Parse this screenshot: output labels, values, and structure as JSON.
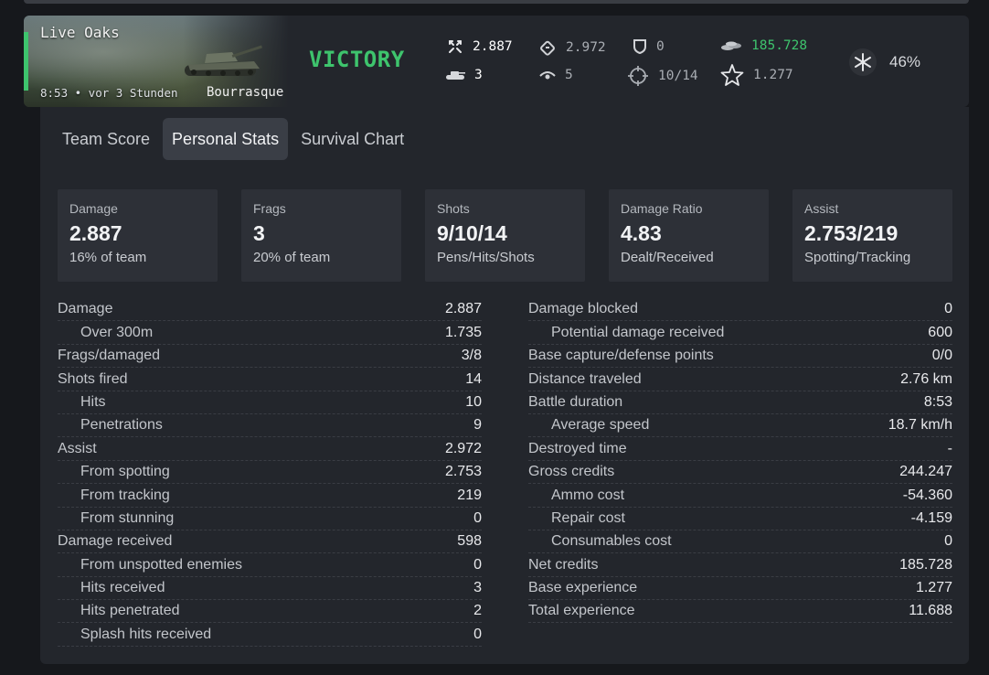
{
  "header": {
    "map_name": "Live Oaks",
    "meta": "8:53 • vor 3 Stunden",
    "tank_name": "Bourrasque",
    "result": "VICTORY",
    "stats": {
      "damage": "2.887",
      "assist": "2.972",
      "blocked": "0",
      "credits": "185.728",
      "frags": "3",
      "spotted": "5",
      "hits": "10/14",
      "xp": "1.277"
    },
    "win_rate": "46%"
  },
  "tabs": [
    {
      "label": "Team Score",
      "active": false
    },
    {
      "label": "Personal Stats",
      "active": true
    },
    {
      "label": "Survival Chart",
      "active": false
    }
  ],
  "cards": [
    {
      "title": "Damage",
      "value": "2.887",
      "sub": "16% of team"
    },
    {
      "title": "Frags",
      "value": "3",
      "sub": "20% of team"
    },
    {
      "title": "Shots",
      "value": "9/10/14",
      "sub": "Pens/Hits/Shots"
    },
    {
      "title": "Damage Ratio",
      "value": "4.83",
      "sub": "Dealt/Received"
    },
    {
      "title": "Assist",
      "value": "2.753/219",
      "sub": "Spotting/Tracking"
    }
  ],
  "left_stats": [
    {
      "label": "Damage",
      "value": "2.887",
      "sub": false
    },
    {
      "label": "Over 300m",
      "value": "1.735",
      "sub": true
    },
    {
      "label": "Frags/damaged",
      "value": "3/8",
      "sub": false
    },
    {
      "label": "Shots fired",
      "value": "14",
      "sub": false
    },
    {
      "label": "Hits",
      "value": "10",
      "sub": true
    },
    {
      "label": "Penetrations",
      "value": "9",
      "sub": true
    },
    {
      "label": "Assist",
      "value": "2.972",
      "sub": false
    },
    {
      "label": "From spotting",
      "value": "2.753",
      "sub": true
    },
    {
      "label": "From tracking",
      "value": "219",
      "sub": true
    },
    {
      "label": "From stunning",
      "value": "0",
      "sub": true
    },
    {
      "label": "Damage received",
      "value": "598",
      "sub": false
    },
    {
      "label": "From unspotted enemies",
      "value": "0",
      "sub": true
    },
    {
      "label": "Hits received",
      "value": "3",
      "sub": true
    },
    {
      "label": "Hits penetrated",
      "value": "2",
      "sub": true
    },
    {
      "label": "Splash hits received",
      "value": "0",
      "sub": true
    }
  ],
  "right_stats": [
    {
      "label": "Damage blocked",
      "value": "0",
      "sub": false
    },
    {
      "label": "Potential damage received",
      "value": "600",
      "sub": true
    },
    {
      "label": "Base capture/defense points",
      "value": "0/0",
      "sub": false
    },
    {
      "label": "Distance traveled",
      "value": "2.76 km",
      "sub": false
    },
    {
      "label": "Battle duration",
      "value": "8:53",
      "sub": false
    },
    {
      "label": "Average speed",
      "value": "18.7 km/h",
      "sub": true
    },
    {
      "label": "Destroyed time",
      "value": "-",
      "sub": false
    },
    {
      "label": "Gross credits",
      "value": "244.247",
      "sub": false
    },
    {
      "label": "Ammo cost",
      "value": "-54.360",
      "sub": true
    },
    {
      "label": "Repair cost",
      "value": "-4.159",
      "sub": true
    },
    {
      "label": "Consumables cost",
      "value": "0",
      "sub": true
    },
    {
      "label": "Net credits",
      "value": "185.728",
      "sub": false
    },
    {
      "label": "Base experience",
      "value": "1.277",
      "sub": false
    },
    {
      "label": "Total experience",
      "value": "11.688",
      "sub": false
    }
  ],
  "colors": {
    "victory": "#3ec46d",
    "panel": "#23262c",
    "card": "#2d3037",
    "active_tab": "#3a3e46"
  },
  "icons": {
    "damage": "crossed-arrows-icon",
    "assist": "assist-chevron-icon",
    "blocked": "shield-icon",
    "credits": "credits-coins-icon",
    "frags": "tank-silhouette-icon",
    "spotted": "eye-icon",
    "hits": "crosshair-icon",
    "xp": "star-icon",
    "win_rate": "spark-icon"
  }
}
